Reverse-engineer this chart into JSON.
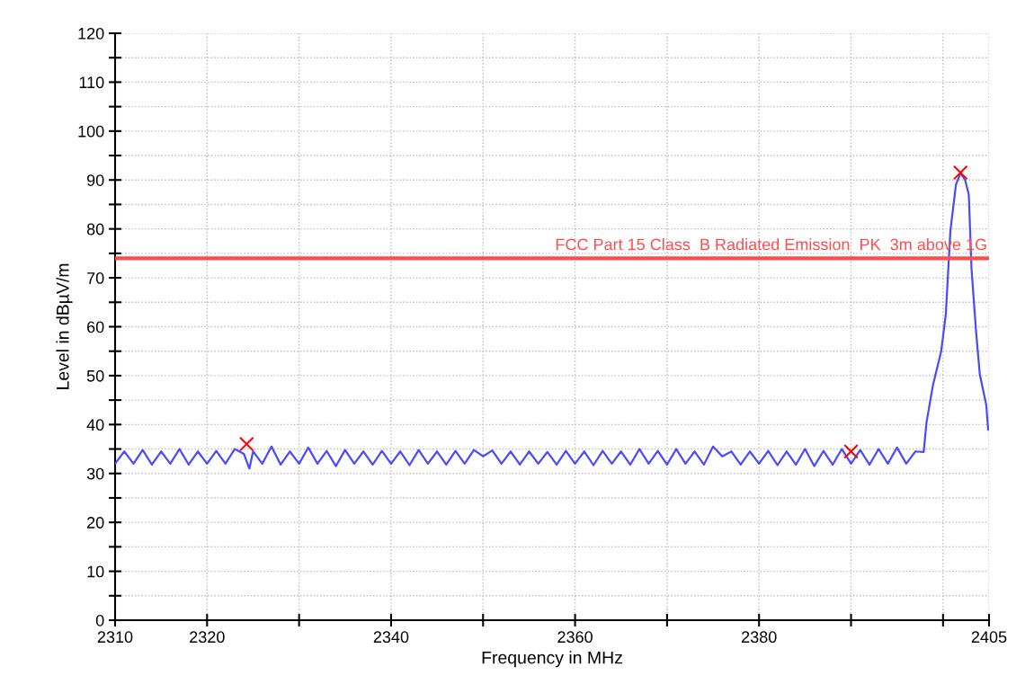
{
  "chart_data": {
    "type": "line",
    "xlabel": "Frequency in MHz",
    "ylabel": "Level in dBµV/m",
    "xlim": [
      2310,
      2405
    ],
    "xticks": [
      2310,
      2320,
      {
        "value": 2330,
        "label": null
      },
      2340,
      {
        "value": 2350,
        "label": null
      },
      2360,
      {
        "value": 2370,
        "label": null
      },
      2380,
      {
        "value": 2390,
        "label": null
      },
      {
        "value": 2400,
        "label": null
      },
      2405
    ],
    "ylim": [
      0,
      120
    ],
    "yticks": [
      0,
      {
        "value": 5,
        "label": null
      },
      10,
      {
        "value": 15,
        "label": null
      },
      20,
      {
        "value": 25,
        "label": null
      },
      30,
      {
        "value": 35,
        "label": null
      },
      40,
      {
        "value": 45,
        "label": null
      },
      50,
      {
        "value": 55,
        "label": null
      },
      60,
      {
        "value": 65,
        "label": null
      },
      70,
      {
        "value": 75,
        "label": null
      },
      80,
      {
        "value": 85,
        "label": null
      },
      90,
      {
        "value": 95,
        "label": null
      },
      100,
      {
        "value": 105,
        "label": null
      },
      110,
      {
        "value": 115,
        "label": null
      },
      120
    ],
    "grid": true,
    "ref_lines": [
      {
        "axis": "y",
        "value": 74,
        "label": "FCC Part 15 Class  B Radiated Emission  PK  3m above 1G",
        "color": "#ff4d4d"
      }
    ],
    "series": [
      {
        "color": "#4a4aff",
        "marker": "none",
        "x": [
          2310,
          2311,
          2312,
          2313,
          2314,
          2315,
          2316,
          2317,
          2318,
          2319,
          2320,
          2321,
          2322,
          2323,
          2324,
          2324.6,
          2325,
          2326,
          2327,
          2328,
          2329,
          2330,
          2331,
          2332,
          2333,
          2334,
          2335,
          2336,
          2337,
          2338,
          2339,
          2340,
          2341,
          2342,
          2343,
          2344,
          2345,
          2346,
          2347,
          2348,
          2349,
          2350,
          2351,
          2352,
          2353,
          2354,
          2355,
          2356,
          2357,
          2358,
          2359,
          2360,
          2361,
          2362,
          2363,
          2364,
          2365,
          2366,
          2367,
          2368,
          2369,
          2370,
          2371,
          2372,
          2373,
          2374,
          2375,
          2376,
          2377,
          2378,
          2379,
          2380,
          2381,
          2382,
          2383,
          2384,
          2385,
          2386,
          2387,
          2388,
          2389,
          2390,
          2391,
          2392,
          2393,
          2394,
          2395,
          2396,
          2397,
          2397.9,
          2398.2,
          2398.9,
          2399.8,
          2400.3,
          2400.8,
          2401.4,
          2401.9,
          2402.4,
          2402.8,
          2403.1,
          2403.6,
          2404.0,
          2404.7,
          2404.9
        ],
        "values": [
          32,
          34.5,
          32,
          34.8,
          31.8,
          34.5,
          32,
          35,
          31.8,
          34.5,
          32,
          34.6,
          32,
          35,
          34,
          31,
          34.5,
          32,
          35.5,
          31.8,
          34.5,
          32,
          35.3,
          32,
          34.6,
          31.5,
          34.8,
          32,
          34.5,
          31.8,
          34.6,
          32,
          34.5,
          31.7,
          34.8,
          32,
          34.5,
          31.8,
          34.6,
          32,
          34.8,
          33.5,
          34.7,
          32,
          34.5,
          31.8,
          34.5,
          32,
          34.4,
          31.8,
          34.6,
          32,
          34.5,
          31.7,
          34.6,
          32,
          34.5,
          31.8,
          35,
          32,
          34.6,
          31.8,
          35,
          32,
          34.5,
          31.8,
          35.5,
          33.5,
          34.5,
          31.8,
          34.5,
          32,
          34.6,
          31.7,
          34.5,
          31.8,
          35,
          31.5,
          34.6,
          31.8,
          35,
          32,
          34.8,
          31.8,
          35,
          32,
          35.3,
          32,
          34.5,
          34.4,
          40.4,
          48,
          55,
          62.5,
          79.6,
          89,
          91.4,
          90,
          87,
          71.7,
          58.8,
          50.2,
          44,
          39
        ]
      },
      {
        "type": "scatter",
        "color": "#ff0000",
        "marker": "cross",
        "x": [
          2324.3,
          2390,
          2401.9
        ],
        "values": [
          36,
          34.5,
          91.5
        ]
      }
    ]
  }
}
